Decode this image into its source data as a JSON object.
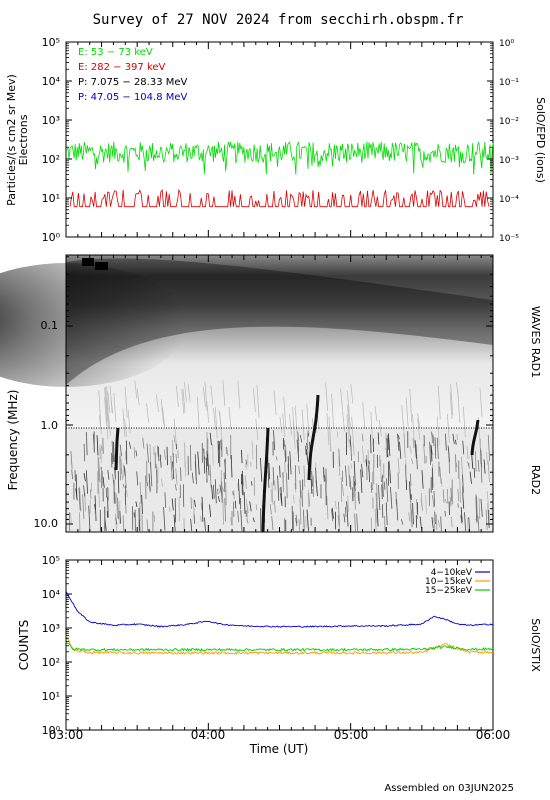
{
  "title": "Survey of 27 NOV 2024 from secchirh.obspm.fr",
  "footer": "Assembled on 03JUN2025",
  "colors": {
    "e_low": "#00dd00",
    "e_high": "#dd0000",
    "p_low": "#000000",
    "p_high": "#0000cc",
    "stix_4_10": "#0000cc",
    "stix_10_15": "#ff9900",
    "stix_15_25": "#00cc00"
  },
  "chart_data": [
    {
      "type": "line",
      "panel": "SolO/EPD",
      "ylabel": "Particles/(s cm2 sr Mev)",
      "ylabel2": "Electrons",
      "right_label": "SolO/EPD (ions)",
      "yscale": "log",
      "ylim": [
        1,
        100000
      ],
      "y_ticks": [
        "10⁰",
        "10¹",
        "10²",
        "10³",
        "10⁴",
        "10⁵"
      ],
      "y2lim": [
        1e-05,
        1
      ],
      "y2_ticks": [
        "10⁻⁵",
        "10⁻⁴",
        "10⁻³",
        "10⁻²",
        "10⁻¹",
        "10⁰"
      ],
      "xlim": [
        "03:00",
        "06:00"
      ],
      "legend": [
        {
          "label": "E: 53 − 73 keV",
          "color": "#00dd00"
        },
        {
          "label": "E: 282 − 397 keV",
          "color": "#dd0000"
        },
        {
          "label": "P: 7.075 − 28.33 MeV",
          "color": "#000000"
        },
        {
          "label": "P: 47.05 − 104.8 MeV",
          "color": "#0000cc"
        }
      ],
      "series": [
        {
          "name": "E: 53 − 73 keV",
          "typical": 150,
          "min": 40,
          "max": 300
        },
        {
          "name": "E: 282 − 397 keV",
          "typical": 6,
          "min": 4,
          "max": 15
        }
      ]
    },
    {
      "type": "heatmap",
      "panel": "WAVES",
      "ylabel": "Frequency (MHz)",
      "yscale": "log",
      "ylim": [
        15,
        0.02
      ],
      "y_ticks": [
        "0.1",
        "1.0",
        "10.0"
      ],
      "right_label_top": "WAVES RAD1",
      "right_label_bottom": "RAD2",
      "xlim": [
        "03:00",
        "06:00"
      ]
    },
    {
      "type": "line",
      "panel": "SolO/STIX",
      "ylabel": "COUNTS",
      "right_label": "SolO/STIX",
      "yscale": "log",
      "ylim": [
        1,
        100000
      ],
      "y_ticks": [
        "10⁰",
        "10¹",
        "10²",
        "10³",
        "10⁴",
        "10⁵"
      ],
      "xlabel": "Time (UT)",
      "x_ticks": [
        "03:00",
        "04:00",
        "05:00",
        "06:00"
      ],
      "xlim": [
        "03:00",
        "06:00"
      ],
      "legend": [
        {
          "label": "4−10keV",
          "color": "#0000cc"
        },
        {
          "label": "10−15keV",
          "color": "#ff9900"
        },
        {
          "label": "15−25keV",
          "color": "#00cc00"
        }
      ],
      "series": [
        {
          "name": "4−10keV",
          "x": [
            "03:00",
            "03:05",
            "03:10",
            "03:20",
            "03:30",
            "03:40",
            "03:50",
            "04:00",
            "04:05",
            "04:15",
            "04:30",
            "04:45",
            "05:00",
            "05:15",
            "05:30",
            "05:35",
            "05:40",
            "05:45",
            "05:50",
            "06:00"
          ],
          "values": [
            12000,
            3000,
            1500,
            1200,
            1300,
            1100,
            1250,
            1600,
            1300,
            1150,
            1100,
            1100,
            1150,
            1150,
            1300,
            2200,
            1800,
            1300,
            1200,
            1300
          ]
        },
        {
          "name": "10−15keV",
          "x": [
            "03:00",
            "03:03",
            "03:10",
            "03:30",
            "04:00",
            "04:30",
            "05:00",
            "05:30",
            "05:40",
            "05:50",
            "06:00"
          ],
          "values": [
            600,
            220,
            190,
            185,
            185,
            185,
            185,
            190,
            330,
            195,
            195
          ]
        },
        {
          "name": "15−25keV",
          "x": [
            "03:00",
            "03:03",
            "03:10",
            "03:30",
            "04:00",
            "04:30",
            "05:00",
            "05:30",
            "05:40",
            "05:50",
            "06:00"
          ],
          "values": [
            400,
            240,
            230,
            230,
            230,
            230,
            230,
            235,
            280,
            235,
            240
          ]
        }
      ]
    }
  ]
}
